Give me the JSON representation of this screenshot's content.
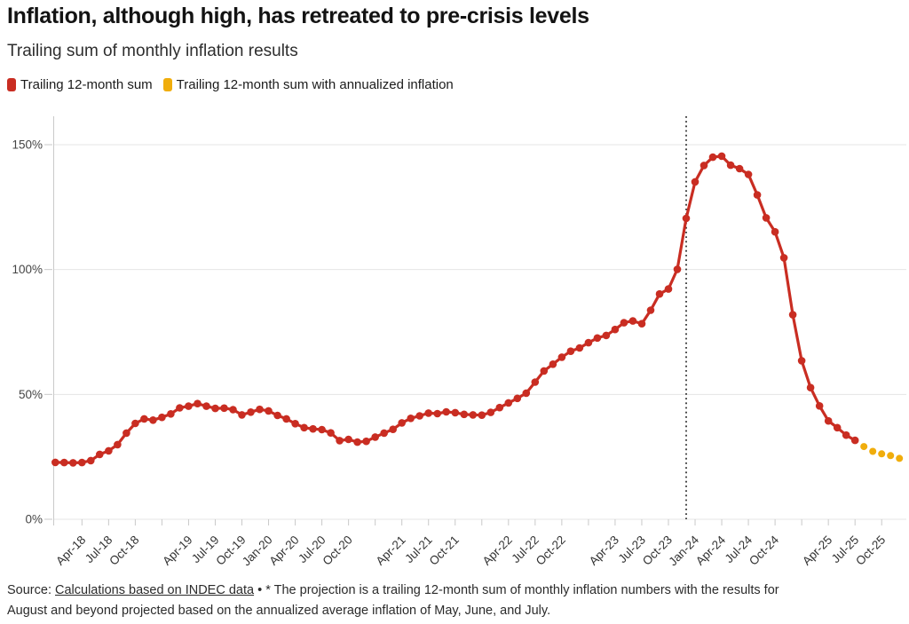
{
  "footer": {
    "prefix": "Source: ",
    "link": "Calculations based on INDEC data",
    "note_line1": " • * The projection is a trailing 12-month sum of monthly inflation numbers with the results for",
    "note_line2": "August and beyond projected based on the annualized average inflation of May, June, and July."
  },
  "chart_data": {
    "type": "line",
    "title": "Inflation, although high, has retreated to pre-crisis levels",
    "subtitle": "Trailing sum of monthly inflation results",
    "x_unit": "month",
    "x_range": [
      "Jan-18",
      "Dec-25"
    ],
    "ylim": [
      0,
      160
    ],
    "grid": true,
    "legend_position": "top-left",
    "y_axis": {
      "ticks": [
        {
          "v": 0,
          "label": "0%"
        },
        {
          "v": 50,
          "label": "50%"
        },
        {
          "v": 100,
          "label": "100%"
        },
        {
          "v": 150,
          "label": "150%"
        }
      ]
    },
    "x_axis": {
      "ticks": [
        {
          "m": 3,
          "label": "Apr-18"
        },
        {
          "m": 6,
          "label": "Jul-18"
        },
        {
          "m": 9,
          "label": "Oct-18"
        },
        {
          "m": 12,
          "label": ""
        },
        {
          "m": 15,
          "label": "Apr-19"
        },
        {
          "m": 18,
          "label": "Jul-19"
        },
        {
          "m": 21,
          "label": "Oct-19"
        },
        {
          "m": 24,
          "label": "Jan-20"
        },
        {
          "m": 27,
          "label": "Apr-20"
        },
        {
          "m": 30,
          "label": "Jul-20"
        },
        {
          "m": 33,
          "label": "Oct-20"
        },
        {
          "m": 36,
          "label": ""
        },
        {
          "m": 39,
          "label": "Apr-21"
        },
        {
          "m": 42,
          "label": "Jul-21"
        },
        {
          "m": 45,
          "label": "Oct-21"
        },
        {
          "m": 48,
          "label": ""
        },
        {
          "m": 51,
          "label": "Apr-22"
        },
        {
          "m": 54,
          "label": "Jul-22"
        },
        {
          "m": 57,
          "label": "Oct-22"
        },
        {
          "m": 60,
          "label": ""
        },
        {
          "m": 63,
          "label": "Apr-23"
        },
        {
          "m": 66,
          "label": "Jul-23"
        },
        {
          "m": 69,
          "label": "Oct-23"
        },
        {
          "m": 72,
          "label": "Jan-24"
        },
        {
          "m": 75,
          "label": "Apr-24"
        },
        {
          "m": 78,
          "label": "Jul-24"
        },
        {
          "m": 81,
          "label": "Oct-24"
        },
        {
          "m": 84,
          "label": ""
        },
        {
          "m": 87,
          "label": "Apr-25"
        },
        {
          "m": 90,
          "label": "Jul-25"
        },
        {
          "m": 93,
          "label": "Oct-25"
        }
      ]
    },
    "annotation_line": {
      "month": "Dec-23",
      "month_index": 71,
      "style": "dotted"
    },
    "series": [
      {
        "name": "Trailing 12-month sum",
        "color": "#c92d22",
        "style": "line+markers",
        "start_month_index": 0,
        "x_start": "Jan-18",
        "x_end": "Jul-25",
        "values": [
          22.8,
          22.7,
          22.6,
          22.7,
          23.5,
          26.0,
          27.4,
          29.9,
          34.5,
          38.4,
          40.2,
          39.7,
          40.8,
          42.2,
          44.6,
          45.3,
          46.3,
          45.3,
          44.4,
          44.5,
          43.9,
          41.8,
          42.9,
          44.0,
          43.4,
          41.6,
          40.2,
          38.3,
          36.7,
          36.2,
          35.9,
          34.6,
          31.5,
          32.0,
          30.9,
          31.2,
          32.9,
          34.5,
          36.0,
          38.6,
          40.4,
          41.4,
          42.5,
          42.3,
          43.0,
          42.7,
          42.0,
          41.8,
          41.7,
          42.8,
          44.7,
          46.6,
          48.4,
          50.5,
          54.9,
          59.4,
          62.1,
          64.9,
          67.3,
          68.6,
          70.7,
          72.6,
          73.6,
          76.0,
          78.7,
          79.4,
          78.3,
          83.7,
          90.2,
          92.2,
          100.1,
          120.5,
          135.1,
          141.7,
          145.0,
          145.4,
          141.8,
          140.4,
          138.1,
          129.9,
          120.7,
          115.1,
          104.7,
          81.9,
          63.5,
          52.7,
          45.4,
          39.4,
          36.7,
          33.7,
          31.6
        ]
      },
      {
        "name": "Trailing 12-month sum with annualized inflation",
        "color": "#f0ad0c",
        "style": "dots",
        "start_month_index": 91,
        "x_start": "Aug-25",
        "x_end": "Dec-25",
        "values": [
          29.1,
          27.2,
          26.2,
          25.5,
          24.4
        ]
      }
    ]
  }
}
